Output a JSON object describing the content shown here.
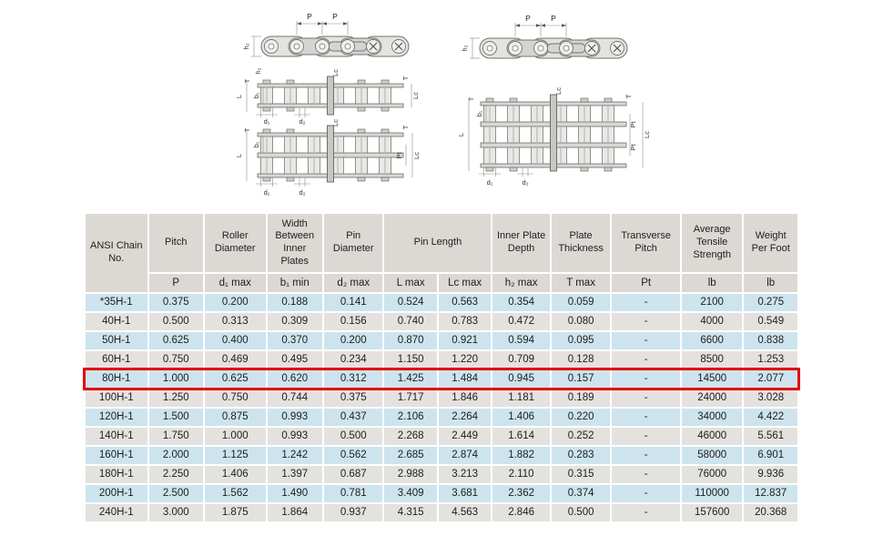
{
  "colors": {
    "row_blue": "#cde4ee",
    "row_gray": "#e4e2de",
    "header_bg": "#dcd9d4",
    "highlight_red": "#e8000d",
    "text": "#1d1d1b",
    "diagram_line": "#767674"
  },
  "diagrams": {
    "left_figure": "single and duplex heavy series roller chain drawing",
    "right_figure": "triplex heavy series roller chain drawing",
    "labels": {
      "p": "P",
      "h2": "h₂",
      "t": "T",
      "b1": "b₁",
      "l": "L",
      "lc": "Lc",
      "d1": "d₁",
      "d2": "d₂",
      "pt": "Pt"
    }
  },
  "table": {
    "header_groups": {
      "ansi": "ANSI Chain No.",
      "pitch": "Pitch",
      "roller_diameter": "Roller Diameter",
      "width_between_inner_plates": "Width Between Inner Plates",
      "pin_diameter": "Pin Diameter",
      "pin_length": "Pin Length",
      "inner_plate_depth": "Inner Plate Depth",
      "plate_thickness": "Plate Thickness",
      "transverse_pitch": "Transverse Pitch",
      "average_tensile_strength": "Average Tensile Strength",
      "weight_per_foot": "Weight Per Foot"
    },
    "sub_headers": [
      "P",
      "d₁ max",
      "b₁ min",
      "d₂ max",
      "L max",
      "Lc max",
      "h₂ max",
      "T max",
      "Pt",
      "lb",
      "lb"
    ],
    "highlight_row": "80H-1",
    "rows": [
      [
        "*35H-1",
        "0.375",
        "0.200",
        "0.188",
        "0.141",
        "0.524",
        "0.563",
        "0.354",
        "0.059",
        "-",
        "2100",
        "0.275"
      ],
      [
        "40H-1",
        "0.500",
        "0.313",
        "0.309",
        "0.156",
        "0.740",
        "0.783",
        "0.472",
        "0.080",
        "-",
        "4000",
        "0.549"
      ],
      [
        "50H-1",
        "0.625",
        "0.400",
        "0.370",
        "0.200",
        "0.870",
        "0.921",
        "0.594",
        "0.095",
        "-",
        "6600",
        "0.838"
      ],
      [
        "60H-1",
        "0.750",
        "0.469",
        "0.495",
        "0.234",
        "1.150",
        "1.220",
        "0.709",
        "0.128",
        "-",
        "8500",
        "1.253"
      ],
      [
        "80H-1",
        "1.000",
        "0.625",
        "0.620",
        "0.312",
        "1.425",
        "1.484",
        "0.945",
        "0.157",
        "-",
        "14500",
        "2.077"
      ],
      [
        "100H-1",
        "1.250",
        "0.750",
        "0.744",
        "0.375",
        "1.717",
        "1.846",
        "1.181",
        "0.189",
        "-",
        "24000",
        "3.028"
      ],
      [
        "120H-1",
        "1.500",
        "0.875",
        "0.993",
        "0.437",
        "2.106",
        "2.264",
        "1.406",
        "0.220",
        "-",
        "34000",
        "4.422"
      ],
      [
        "140H-1",
        "1.750",
        "1.000",
        "0.993",
        "0.500",
        "2.268",
        "2.449",
        "1.614",
        "0.252",
        "-",
        "46000",
        "5.561"
      ],
      [
        "160H-1",
        "2.000",
        "1.125",
        "1.242",
        "0.562",
        "2.685",
        "2.874",
        "1.882",
        "0.283",
        "-",
        "58000",
        "6.901"
      ],
      [
        "180H-1",
        "2.250",
        "1.406",
        "1.397",
        "0.687",
        "2.988",
        "3.213",
        "2.110",
        "0.315",
        "-",
        "76000",
        "9.936"
      ],
      [
        "200H-1",
        "2.500",
        "1.562",
        "1.490",
        "0.781",
        "3.409",
        "3.681",
        "2.362",
        "0.374",
        "-",
        "110000",
        "12.837"
      ],
      [
        "240H-1",
        "3.000",
        "1.875",
        "1.864",
        "0.937",
        "4.315",
        "4.563",
        "2.846",
        "0.500",
        "-",
        "157600",
        "20.368"
      ]
    ]
  }
}
